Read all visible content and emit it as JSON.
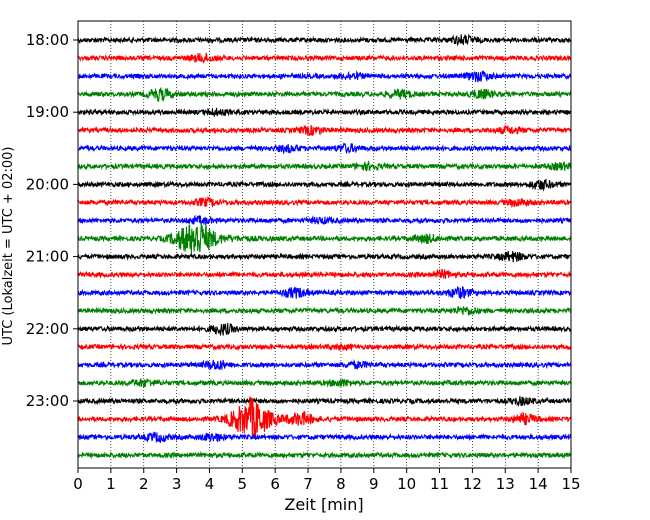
{
  "chart_data": {
    "type": "line",
    "title": "",
    "xlabel": "Zeit  [min]",
    "ylabel": "UTC (Lokalzeit = UTC + 02:00)",
    "xlim": [
      0,
      15
    ],
    "x_ticks": [
      0,
      1,
      2,
      3,
      4,
      5,
      6,
      7,
      8,
      9,
      10,
      11,
      12,
      13,
      14,
      15
    ],
    "y_tick_labels": [
      "18:00",
      "19:00",
      "20:00",
      "21:00",
      "22:00",
      "23:00"
    ],
    "grid": "vertical dotted lines at each minute",
    "trace_colors": [
      "#000000",
      "#ff0000",
      "#0000ff",
      "#008000"
    ],
    "traces": [
      {
        "time": "18:00",
        "color": "#000000",
        "events": [
          {
            "t": 11.7,
            "amp": 1.4
          }
        ]
      },
      {
        "time": "18:15",
        "color": "#ff0000",
        "events": [
          {
            "t": 3.8,
            "amp": 1.3
          }
        ]
      },
      {
        "time": "18:30",
        "color": "#0000ff",
        "events": [
          {
            "t": 12.2,
            "amp": 1.6
          },
          {
            "t": 8.3,
            "amp": 1.0
          }
        ]
      },
      {
        "time": "18:45",
        "color": "#008000",
        "events": [
          {
            "t": 2.5,
            "amp": 2.0
          },
          {
            "t": 9.8,
            "amp": 1.3
          },
          {
            "t": 12.3,
            "amp": 1.4
          }
        ]
      },
      {
        "time": "19:00",
        "color": "#000000",
        "events": [
          {
            "t": 4.2,
            "amp": 0.9
          }
        ]
      },
      {
        "time": "19:15",
        "color": "#ff0000",
        "events": [
          {
            "t": 7.1,
            "amp": 1.3
          },
          {
            "t": 13.1,
            "amp": 1.0
          }
        ]
      },
      {
        "time": "19:30",
        "color": "#0000ff",
        "events": [
          {
            "t": 6.4,
            "amp": 1.0
          },
          {
            "t": 8.2,
            "amp": 1.2
          }
        ]
      },
      {
        "time": "19:45",
        "color": "#008000",
        "events": [
          {
            "t": 8.8,
            "amp": 1.0
          },
          {
            "t": 14.7,
            "amp": 1.0
          }
        ]
      },
      {
        "time": "20:00",
        "color": "#000000",
        "events": [
          {
            "t": 14.1,
            "amp": 1.5
          }
        ]
      },
      {
        "time": "20:15",
        "color": "#ff0000",
        "events": [
          {
            "t": 3.9,
            "amp": 1.2
          },
          {
            "t": 13.4,
            "amp": 1.1
          }
        ]
      },
      {
        "time": "20:30",
        "color": "#0000ff",
        "events": [
          {
            "t": 3.7,
            "amp": 1.0
          },
          {
            "t": 7.4,
            "amp": 0.8
          }
        ]
      },
      {
        "time": "20:45",
        "color": "#008000",
        "events": [
          {
            "t": 3.5,
            "amp": 5.5
          },
          {
            "t": 10.6,
            "amp": 1.3
          }
        ]
      },
      {
        "time": "21:00",
        "color": "#000000",
        "events": [
          {
            "t": 13.2,
            "amp": 1.5
          }
        ]
      },
      {
        "time": "21:15",
        "color": "#ff0000",
        "events": [
          {
            "t": 11.1,
            "amp": 1.2
          }
        ]
      },
      {
        "time": "21:30",
        "color": "#0000ff",
        "events": [
          {
            "t": 6.6,
            "amp": 1.6
          },
          {
            "t": 11.6,
            "amp": 1.7
          }
        ]
      },
      {
        "time": "21:45",
        "color": "#008000",
        "events": [
          {
            "t": 11.8,
            "amp": 1.2
          }
        ]
      },
      {
        "time": "22:00",
        "color": "#000000",
        "events": [
          {
            "t": 4.4,
            "amp": 1.8
          }
        ]
      },
      {
        "time": "22:15",
        "color": "#ff0000",
        "events": [
          {
            "t": 8.0,
            "amp": 0.6
          }
        ]
      },
      {
        "time": "22:30",
        "color": "#0000ff",
        "events": [
          {
            "t": 4.2,
            "amp": 1.5
          },
          {
            "t": 8.5,
            "amp": 0.9
          }
        ]
      },
      {
        "time": "22:45",
        "color": "#008000",
        "events": [
          {
            "t": 2.0,
            "amp": 1.0
          },
          {
            "t": 8.0,
            "amp": 1.0
          }
        ]
      },
      {
        "time": "23:00",
        "color": "#000000",
        "events": [
          {
            "t": 13.5,
            "amp": 1.1
          }
        ]
      },
      {
        "time": "23:15",
        "color": "#ff0000",
        "events": [
          {
            "t": 5.2,
            "amp": 6.0
          },
          {
            "t": 6.8,
            "amp": 1.8
          },
          {
            "t": 13.6,
            "amp": 1.6
          }
        ]
      },
      {
        "time": "23:30",
        "color": "#0000ff",
        "events": [
          {
            "t": 2.4,
            "amp": 1.3
          },
          {
            "t": 4.1,
            "amp": 1.2
          }
        ]
      },
      {
        "time": "23:45",
        "color": "#008000",
        "events": []
      }
    ]
  }
}
